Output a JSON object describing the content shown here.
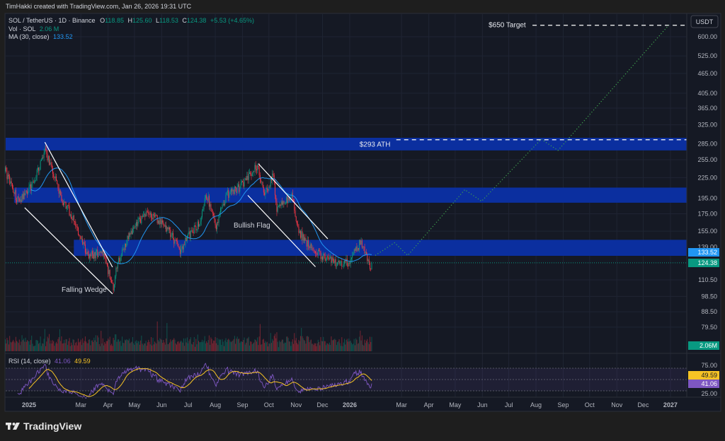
{
  "header": {
    "credit": "TimHakki created with TradingView.com, Jan 26, 2026 19:31 UTC"
  },
  "legend": {
    "symbol": "SOL / TetherUS · 1D · Binance",
    "o_label": "O",
    "o": "118.85",
    "h_label": "H",
    "h": "125.60",
    "l_label": "L",
    "l": "118.53",
    "c_label": "C",
    "c": "124.38",
    "change": "+5.53 (+4.65%)",
    "vol_label": "Vol · SOL",
    "vol": "2.06 M",
    "ma_label": "MA (30, close)",
    "ma": "133.52"
  },
  "rsi_legend": {
    "label": "RSI (14, close)",
    "rsi": "41.06",
    "rsi_ma": "49.59"
  },
  "price_axis": {
    "currency": "USDT",
    "ticks": [
      "600.00",
      "525.00",
      "465.00",
      "405.00",
      "365.00",
      "325.00",
      "285.00",
      "255.00",
      "225.00",
      "195.00",
      "175.00",
      "155.00",
      "139.00",
      "110.50",
      "98.50",
      "88.50",
      "79.50"
    ],
    "badges": {
      "ma": "133.52",
      "last": "124.38",
      "volume": "2.06M",
      "rsi_ma": "49.59",
      "rsi": "41.06"
    }
  },
  "rsi_axis": {
    "ticks": [
      "75.00",
      "25.00"
    ]
  },
  "time_axis": {
    "ticks": [
      {
        "label": "2025",
        "date": "2025-01-01",
        "bold": true
      },
      {
        "label": "Mar",
        "date": "2025-03-01"
      },
      {
        "label": "Apr",
        "date": "2025-04-01"
      },
      {
        "label": "May",
        "date": "2025-05-01"
      },
      {
        "label": "Jun",
        "date": "2025-06-01"
      },
      {
        "label": "Jul",
        "date": "2025-07-01"
      },
      {
        "label": "Aug",
        "date": "2025-08-01"
      },
      {
        "label": "Sep",
        "date": "2025-09-01"
      },
      {
        "label": "Oct",
        "date": "2025-10-01"
      },
      {
        "label": "Nov",
        "date": "2025-11-01"
      },
      {
        "label": "Dec",
        "date": "2025-12-01"
      },
      {
        "label": "2026",
        "date": "2026-01-01",
        "bold": true
      },
      {
        "label": "Mar",
        "date": "2026-03-01"
      },
      {
        "label": "Apr",
        "date": "2026-04-01"
      },
      {
        "label": "May",
        "date": "2026-05-01"
      },
      {
        "label": "Jun",
        "date": "2026-06-01"
      },
      {
        "label": "Jul",
        "date": "2026-07-01"
      },
      {
        "label": "Aug",
        "date": "2026-08-01"
      },
      {
        "label": "Sep",
        "date": "2026-09-01"
      },
      {
        "label": "Oct",
        "date": "2026-10-01"
      },
      {
        "label": "Nov",
        "date": "2026-11-01"
      },
      {
        "label": "Dec",
        "date": "2026-12-01"
      },
      {
        "label": "2027",
        "date": "2027-01-01",
        "bold": true
      }
    ]
  },
  "annotations": {
    "falling_wedge": "Falling Wedge",
    "bullish_flag": "Bullish Flag",
    "ath": "$293 ATH",
    "target": "$650 Target"
  },
  "brand": {
    "logo_text": "TradingView"
  },
  "colors": {
    "up": "#089981",
    "down": "#f23645",
    "ma": "#2196f3",
    "zone": "#0b2f9f",
    "rsi": "#7e57c2",
    "rsi_ma": "#f7c325",
    "projection": "#3fa34d",
    "background": "#151924"
  },
  "chart_data": {
    "type": "candlestick",
    "symbol": "SOL / TetherUS",
    "interval": "1D",
    "y_scale": "log",
    "ylim": [
      79.5,
      650
    ],
    "price_path": [
      [
        "2024-12-05",
        235
      ],
      [
        "2024-12-20",
        190
      ],
      [
        "2025-01-05",
        215
      ],
      [
        "2025-01-19",
        270
      ],
      [
        "2025-01-25",
        250
      ],
      [
        "2025-02-05",
        200
      ],
      [
        "2025-02-20",
        170
      ],
      [
        "2025-03-01",
        145
      ],
      [
        "2025-03-10",
        130
      ],
      [
        "2025-03-25",
        135
      ],
      [
        "2025-04-07",
        105
      ],
      [
        "2025-04-12",
        125
      ],
      [
        "2025-04-25",
        150
      ],
      [
        "2025-05-12",
        175
      ],
      [
        "2025-05-25",
        170
      ],
      [
        "2025-06-10",
        155
      ],
      [
        "2025-06-22",
        135
      ],
      [
        "2025-07-01",
        150
      ],
      [
        "2025-07-15",
        165
      ],
      [
        "2025-07-22",
        200
      ],
      [
        "2025-08-02",
        162
      ],
      [
        "2025-08-14",
        200
      ],
      [
        "2025-08-28",
        210
      ],
      [
        "2025-09-18",
        245
      ],
      [
        "2025-09-26",
        200
      ],
      [
        "2025-10-06",
        230
      ],
      [
        "2025-10-10",
        180
      ],
      [
        "2025-10-27",
        200
      ],
      [
        "2025-11-04",
        155
      ],
      [
        "2025-11-20",
        135
      ],
      [
        "2025-12-01",
        130
      ],
      [
        "2025-12-15",
        125
      ],
      [
        "2025-12-31",
        125
      ],
      [
        "2026-01-14",
        145
      ],
      [
        "2026-01-24",
        120
      ],
      [
        "2026-01-26",
        124.38
      ]
    ],
    "last_candle": {
      "date": "2026-01-26",
      "open": 118.85,
      "high": 125.6,
      "low": 118.53,
      "close": 124.38
    },
    "ma_period": 30,
    "rsi_period": 14,
    "zones": [
      {
        "from": "2024-12-04",
        "low": 272,
        "high": 297
      },
      {
        "from": "2024-12-15",
        "low": 189,
        "high": 210
      },
      {
        "from": "2025-02-21",
        "low": 130.6,
        "high": 146
      }
    ],
    "trendlines": [
      {
        "name": "falling-wedge-upper",
        "points": [
          [
            "2025-01-19",
            288
          ],
          [
            "2025-04-06",
            120.7
          ]
        ]
      },
      {
        "name": "falling-wedge-lower",
        "points": [
          [
            "2024-12-27",
            182.6
          ],
          [
            "2025-04-06",
            100.2
          ]
        ]
      },
      {
        "name": "bullish-flag-upper",
        "points": [
          [
            "2025-09-19",
            248
          ],
          [
            "2025-12-07",
            147
          ]
        ]
      },
      {
        "name": "bullish-flag-lower",
        "points": [
          [
            "2025-09-07",
            199
          ],
          [
            "2025-11-23",
            121
          ]
        ]
      }
    ],
    "levels": [
      {
        "name": "ath",
        "price": 293,
        "from": "2026-02-23"
      },
      {
        "name": "target",
        "price": 650,
        "from": "2026-07-28"
      }
    ],
    "projection": [
      [
        "2026-01-30",
        131
      ],
      [
        "2026-02-21",
        143
      ],
      [
        "2026-03-08",
        131
      ],
      [
        "2026-05-12",
        207
      ],
      [
        "2026-05-31",
        191
      ],
      [
        "2026-08-07",
        294
      ],
      [
        "2026-08-26",
        272
      ],
      [
        "2026-12-30",
        650
      ]
    ]
  }
}
